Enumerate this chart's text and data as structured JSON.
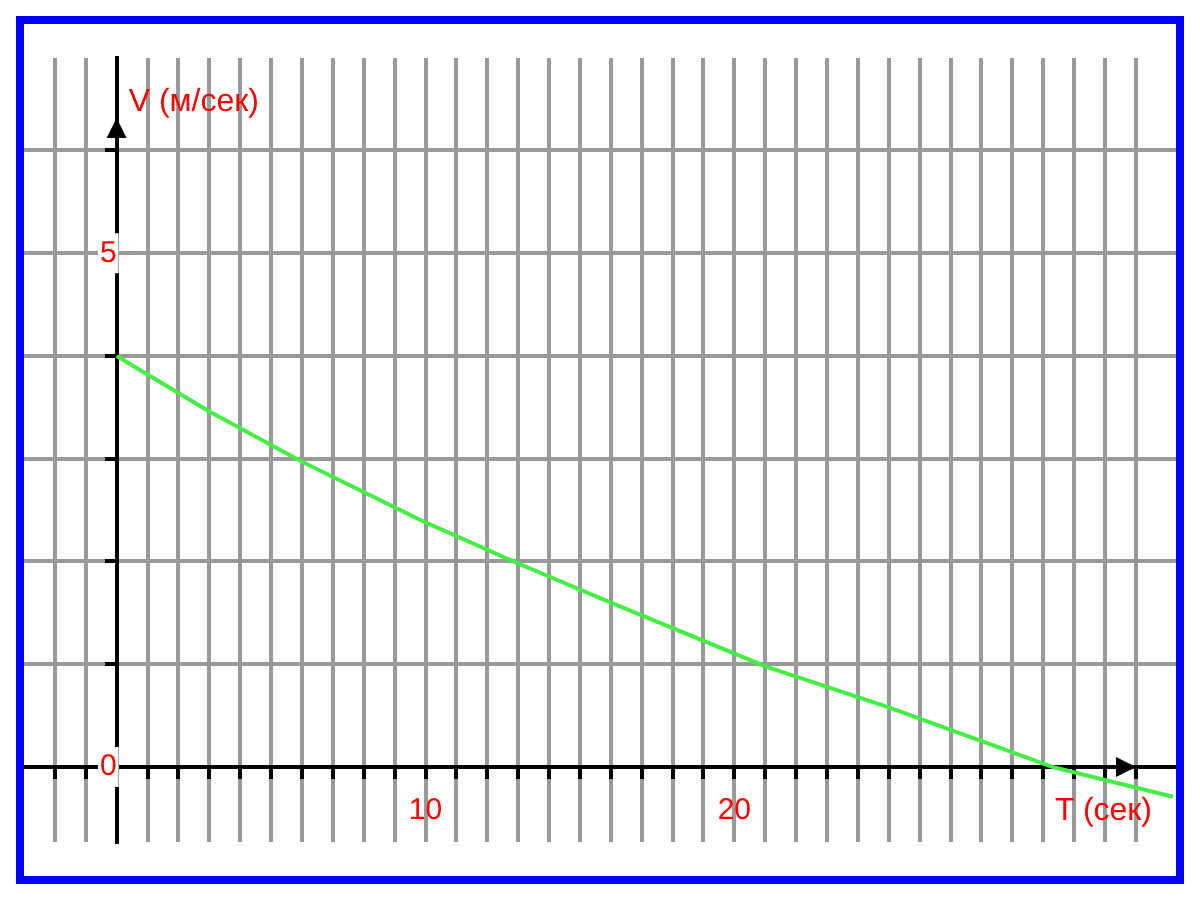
{
  "chart_data": {
    "type": "line",
    "xlabel": "T (сек)",
    "ylabel": "V (м/сек)",
    "x": [
      0,
      3,
      6,
      10,
      13,
      16,
      21,
      25,
      30.3,
      34.2
    ],
    "series": [
      {
        "color": "#44ee44",
        "values": [
          4,
          3.46,
          2.97,
          2.38,
          1.98,
          1.6,
          0.98,
          0.58,
          0,
          -0.29
        ]
      }
    ],
    "xlim": [
      -3,
      34.3
    ],
    "ylim": [
      -0.73,
      6.9
    ],
    "xticks": [
      {
        "value": -2,
        "label": null
      },
      {
        "value": -1,
        "label": null
      },
      {
        "value": 0,
        "label": null
      },
      {
        "value": 1,
        "label": null
      },
      {
        "value": 2,
        "label": null
      },
      {
        "value": 3,
        "label": null
      },
      {
        "value": 4,
        "label": null
      },
      {
        "value": 5,
        "label": null
      },
      {
        "value": 6,
        "label": null
      },
      {
        "value": 7,
        "label": null
      },
      {
        "value": 8,
        "label": null
      },
      {
        "value": 9,
        "label": null
      },
      10,
      {
        "value": 11,
        "label": null
      },
      {
        "value": 12,
        "label": null
      },
      {
        "value": 13,
        "label": null
      },
      {
        "value": 14,
        "label": null
      },
      {
        "value": 15,
        "label": null
      },
      {
        "value": 16,
        "label": null
      },
      {
        "value": 17,
        "label": null
      },
      {
        "value": 18,
        "label": null
      },
      {
        "value": 19,
        "label": null
      },
      20,
      {
        "value": 21,
        "label": null
      },
      {
        "value": 22,
        "label": null
      },
      {
        "value": 23,
        "label": null
      },
      {
        "value": 24,
        "label": null
      },
      {
        "value": 25,
        "label": null
      },
      {
        "value": 26,
        "label": null
      },
      {
        "value": 27,
        "label": null
      },
      {
        "value": 28,
        "label": null
      },
      {
        "value": 29,
        "label": null
      },
      {
        "value": 30,
        "label": null
      },
      {
        "value": 31,
        "label": null
      },
      {
        "value": 32,
        "label": null
      },
      {
        "value": 33,
        "label": null
      }
    ],
    "yticks": [
      0,
      {
        "value": 1,
        "label": null
      },
      {
        "value": 2,
        "label": null
      },
      {
        "value": 3,
        "label": null
      },
      {
        "value": 4,
        "label": null
      },
      5,
      {
        "value": 6,
        "label": null
      }
    ],
    "grid": true,
    "legend": false,
    "marker": "none",
    "line_style": "solid"
  }
}
